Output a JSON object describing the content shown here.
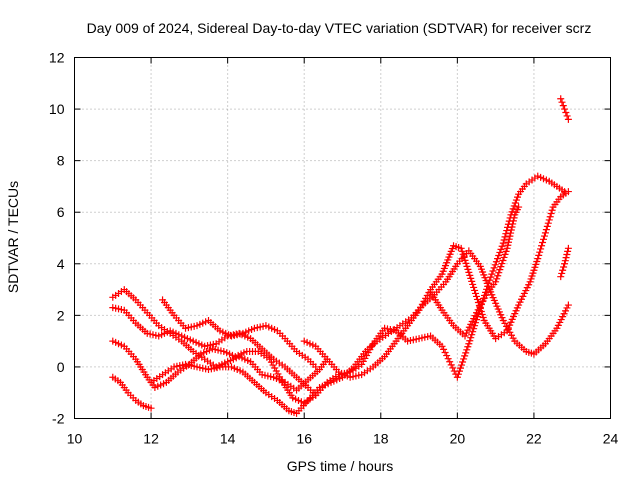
{
  "chart_data": {
    "type": "scatter",
    "title": "Day 009 of 2024, Sidereal Day-to-day VTEC variation (SDTVAR) for receiver scrz",
    "xlabel": "GPS time / hours",
    "ylabel": "SDTVAR / TECUs",
    "xlim": [
      10,
      24
    ],
    "ylim": [
      -2,
      12
    ],
    "xticks": [
      10,
      12,
      14,
      16,
      18,
      20,
      22,
      24
    ],
    "yticks": [
      -2,
      0,
      2,
      4,
      6,
      8,
      10,
      12
    ],
    "xtick_labels": [
      "10",
      "12",
      "14",
      "16",
      "18",
      "20",
      "22",
      "24"
    ],
    "ytick_labels": [
      "-2",
      "0",
      "2",
      "4",
      "6",
      "8",
      "10",
      "12"
    ],
    "grid": true,
    "marker": "+",
    "color": "#ff0000",
    "series": [
      {
        "name": "track-1",
        "points": [
          [
            11.0,
            2.7
          ],
          [
            11.3,
            3.0
          ],
          [
            11.6,
            2.6
          ],
          [
            11.9,
            2.1
          ],
          [
            12.2,
            1.6
          ],
          [
            12.5,
            1.3
          ],
          [
            12.8,
            1.0
          ],
          [
            13.1,
            0.6
          ],
          [
            13.4,
            0.3
          ],
          [
            13.7,
            0.0
          ],
          [
            14.0,
            0.2
          ],
          [
            14.3,
            0.4
          ],
          [
            14.6,
            0.2
          ],
          [
            14.9,
            -0.3
          ],
          [
            15.2,
            -0.4
          ],
          [
            15.5,
            -0.6
          ],
          [
            15.8,
            -0.9
          ],
          [
            16.1,
            -0.5
          ],
          [
            16.4,
            -0.1
          ],
          [
            16.6,
            0.3
          ]
        ]
      },
      {
        "name": "track-2",
        "points": [
          [
            11.0,
            2.3
          ],
          [
            11.3,
            2.2
          ],
          [
            11.6,
            1.7
          ],
          [
            11.9,
            1.3
          ],
          [
            12.2,
            1.2
          ],
          [
            12.5,
            1.4
          ],
          [
            12.8,
            1.2
          ],
          [
            13.1,
            1.0
          ],
          [
            13.4,
            0.8
          ],
          [
            13.7,
            0.9
          ],
          [
            14.0,
            1.2
          ],
          [
            14.3,
            1.3
          ],
          [
            14.6,
            1.1
          ],
          [
            14.9,
            0.7
          ],
          [
            15.2,
            0.3
          ],
          [
            15.5,
            0.0
          ],
          [
            15.8,
            -0.4
          ],
          [
            16.1,
            -0.8
          ],
          [
            16.3,
            -1.1
          ]
        ]
      },
      {
        "name": "track-3",
        "points": [
          [
            11.0,
            1.0
          ],
          [
            11.3,
            0.8
          ],
          [
            11.6,
            0.3
          ],
          [
            11.9,
            -0.4
          ],
          [
            12.1,
            -0.8
          ],
          [
            12.4,
            -0.6
          ],
          [
            12.7,
            -0.2
          ],
          [
            13.0,
            0.1
          ],
          [
            13.3,
            0.5
          ],
          [
            13.6,
            0.7
          ],
          [
            13.9,
            0.6
          ],
          [
            14.2,
            0.4
          ],
          [
            14.5,
            0.6
          ],
          [
            14.8,
            0.6
          ],
          [
            15.1,
            0.3
          ],
          [
            15.4,
            -0.5
          ],
          [
            15.7,
            -1.2
          ],
          [
            16.0,
            -1.4
          ],
          [
            16.3,
            -1.1
          ],
          [
            16.6,
            -0.6
          ],
          [
            16.9,
            -0.3
          ],
          [
            17.2,
            -0.2
          ],
          [
            17.5,
            0.1
          ],
          [
            17.8,
            0.9
          ],
          [
            18.1,
            1.5
          ],
          [
            18.4,
            1.4
          ],
          [
            18.7,
            1.0
          ],
          [
            19.0,
            1.1
          ],
          [
            19.3,
            1.2
          ],
          [
            19.6,
            0.8
          ],
          [
            19.8,
            0.2
          ],
          [
            20.0,
            -0.4
          ],
          [
            20.3,
            0.9
          ],
          [
            20.6,
            2.3
          ],
          [
            20.9,
            3.6
          ],
          [
            21.2,
            4.8
          ],
          [
            21.4,
            5.9
          ],
          [
            21.6,
            6.7
          ],
          [
            21.8,
            7.1
          ],
          [
            22.1,
            7.4
          ],
          [
            22.4,
            7.2
          ],
          [
            22.6,
            7.0
          ],
          [
            22.8,
            6.8
          ]
        ]
      },
      {
        "name": "track-4",
        "points": [
          [
            11.0,
            -0.4
          ],
          [
            11.2,
            -0.6
          ],
          [
            11.4,
            -1.0
          ],
          [
            11.6,
            -1.3
          ],
          [
            11.8,
            -1.5
          ],
          [
            12.0,
            -1.6
          ]
        ]
      },
      {
        "name": "track-5",
        "points": [
          [
            12.0,
            -0.6
          ],
          [
            12.3,
            -0.3
          ],
          [
            12.6,
            0.0
          ],
          [
            12.9,
            0.1
          ],
          [
            13.2,
            0.0
          ],
          [
            13.5,
            -0.1
          ],
          [
            13.8,
            0.0
          ],
          [
            14.1,
            0.0
          ],
          [
            14.4,
            -0.2
          ],
          [
            14.7,
            -0.6
          ],
          [
            15.0,
            -1.0
          ],
          [
            15.3,
            -1.3
          ],
          [
            15.6,
            -1.7
          ],
          [
            15.8,
            -1.8
          ],
          [
            16.1,
            -1.3
          ],
          [
            16.4,
            -0.8
          ],
          [
            16.7,
            -0.6
          ],
          [
            17.0,
            -0.4
          ],
          [
            17.3,
            0.0
          ],
          [
            17.6,
            0.6
          ],
          [
            17.9,
            1.0
          ],
          [
            18.2,
            1.3
          ],
          [
            18.5,
            1.6
          ],
          [
            18.8,
            1.9
          ],
          [
            19.1,
            2.4
          ],
          [
            19.4,
            2.8
          ],
          [
            19.7,
            3.3
          ],
          [
            20.0,
            4.0
          ],
          [
            20.3,
            4.5
          ],
          [
            20.6,
            3.9
          ],
          [
            20.9,
            2.8
          ],
          [
            21.2,
            1.8
          ],
          [
            21.5,
            1.0
          ],
          [
            21.8,
            0.6
          ],
          [
            22.0,
            0.5
          ],
          [
            22.3,
            0.9
          ],
          [
            22.6,
            1.5
          ],
          [
            22.9,
            2.4
          ]
        ]
      },
      {
        "name": "track-6",
        "points": [
          [
            12.3,
            2.6
          ],
          [
            12.6,
            2.0
          ],
          [
            12.9,
            1.5
          ],
          [
            13.2,
            1.6
          ],
          [
            13.5,
            1.8
          ],
          [
            13.8,
            1.4
          ],
          [
            14.1,
            1.2
          ],
          [
            14.4,
            1.3
          ],
          [
            14.7,
            1.5
          ],
          [
            15.0,
            1.6
          ],
          [
            15.3,
            1.4
          ],
          [
            15.5,
            1.1
          ],
          [
            15.8,
            0.6
          ],
          [
            16.1,
            0.3
          ],
          [
            16.3,
            0.0
          ]
        ]
      },
      {
        "name": "track-7",
        "points": [
          [
            16.0,
            1.0
          ],
          [
            16.3,
            0.8
          ],
          [
            16.6,
            0.3
          ],
          [
            16.9,
            -0.2
          ],
          [
            17.2,
            -0.4
          ],
          [
            17.5,
            -0.3
          ],
          [
            17.8,
            0.0
          ],
          [
            18.1,
            0.4
          ],
          [
            18.4,
            1.0
          ],
          [
            18.7,
            1.6
          ],
          [
            19.0,
            2.2
          ],
          [
            19.3,
            3.0
          ],
          [
            19.6,
            3.6
          ],
          [
            19.9,
            4.7
          ],
          [
            20.1,
            4.6
          ],
          [
            20.4,
            3.2
          ],
          [
            20.7,
            1.8
          ],
          [
            21.0,
            1.1
          ],
          [
            21.3,
            1.4
          ],
          [
            21.6,
            2.4
          ],
          [
            21.9,
            3.3
          ],
          [
            22.1,
            4.2
          ],
          [
            22.3,
            5.2
          ],
          [
            22.5,
            6.2
          ],
          [
            22.7,
            6.6
          ],
          [
            22.9,
            6.8
          ]
        ]
      },
      {
        "name": "track-8",
        "points": [
          [
            19.3,
            2.9
          ],
          [
            19.6,
            2.2
          ],
          [
            19.9,
            1.6
          ],
          [
            20.2,
            1.2
          ],
          [
            20.5,
            2.1
          ],
          [
            20.8,
            2.9
          ],
          [
            21.0,
            3.3
          ],
          [
            21.3,
            4.6
          ],
          [
            21.5,
            5.9
          ],
          [
            21.6,
            6.2
          ]
        ]
      },
      {
        "name": "track-9",
        "points": [
          [
            22.7,
            10.4
          ],
          [
            22.8,
            10.0
          ],
          [
            22.9,
            9.6
          ]
        ]
      },
      {
        "name": "track-10",
        "points": [
          [
            22.7,
            3.5
          ],
          [
            22.8,
            4.0
          ],
          [
            22.9,
            4.6
          ]
        ]
      }
    ]
  }
}
